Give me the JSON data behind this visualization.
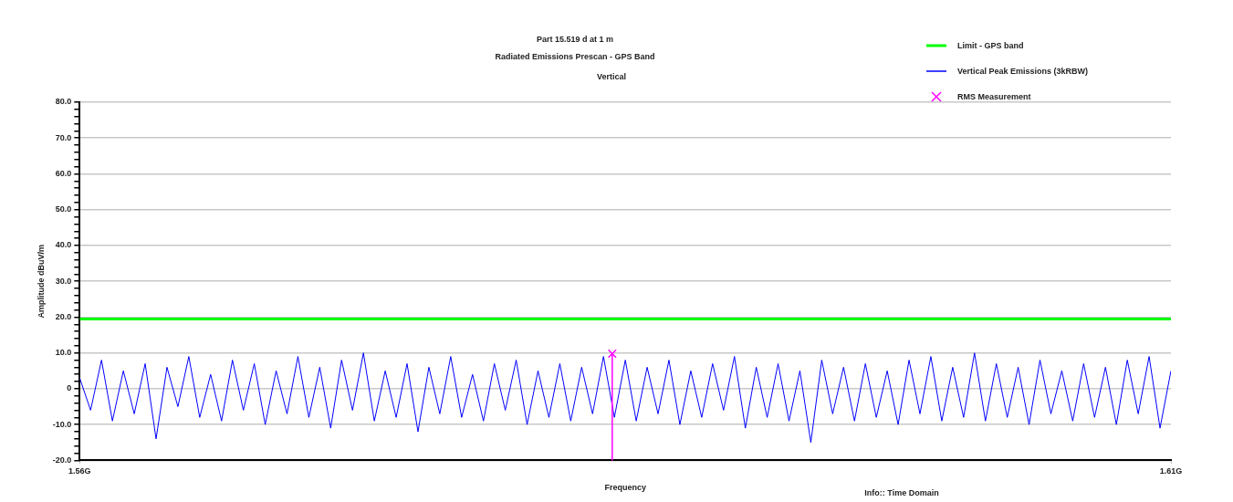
{
  "chart_data": {
    "type": "line",
    "title": "Part 15.519 d at 1 m",
    "subtitle": "Radiated Emissions  Prescan - GPS Band",
    "annotations": [
      "Vertical",
      "Info:: Time Domain"
    ],
    "xlabel": "Frequency",
    "ylabel": "Amplitude dBuV/m",
    "xlim": [
      1.56,
      1.61
    ],
    "xticks": [
      {
        "value": 1.56,
        "label": "1.56G"
      },
      {
        "value": 1.61,
        "label": "1.61G"
      }
    ],
    "ylim": [
      -20,
      80
    ],
    "yticks": [
      {
        "value": -20,
        "label": "-20.0"
      },
      {
        "value": -18,
        "label": null
      },
      {
        "value": -16,
        "label": null
      },
      {
        "value": -14,
        "label": null
      },
      {
        "value": -12,
        "label": null
      },
      {
        "value": -10,
        "label": "-10.0"
      },
      {
        "value": -8,
        "label": null
      },
      {
        "value": -6,
        "label": null
      },
      {
        "value": -4,
        "label": null
      },
      {
        "value": -2,
        "label": null
      },
      0,
      {
        "value": 2,
        "label": null
      },
      {
        "value": 4,
        "label": null
      },
      {
        "value": 6,
        "label": null
      },
      {
        "value": 8,
        "label": null
      },
      {
        "value": 10,
        "label": "10.0"
      },
      {
        "value": 12,
        "label": null
      },
      {
        "value": 14,
        "label": null
      },
      {
        "value": 16,
        "label": null
      },
      {
        "value": 18,
        "label": null
      },
      {
        "value": 20,
        "label": "20.0"
      },
      {
        "value": 22,
        "label": null
      },
      {
        "value": 24,
        "label": null
      },
      {
        "value": 26,
        "label": null
      },
      {
        "value": 28,
        "label": null
      },
      {
        "value": 30,
        "label": "30.0"
      },
      {
        "value": 32,
        "label": null
      },
      {
        "value": 34,
        "label": null
      },
      {
        "value": 36,
        "label": null
      },
      {
        "value": 38,
        "label": null
      },
      {
        "value": 40,
        "label": "40.0"
      },
      {
        "value": 42,
        "label": null
      },
      {
        "value": 44,
        "label": null
      },
      {
        "value": 46,
        "label": null
      },
      {
        "value": 48,
        "label": null
      },
      {
        "value": 50,
        "label": "50.0"
      },
      {
        "value": 52,
        "label": null
      },
      {
        "value": 54,
        "label": null
      },
      {
        "value": 56,
        "label": null
      },
      {
        "value": 58,
        "label": null
      },
      {
        "value": 60,
        "label": "60.0"
      },
      {
        "value": 62,
        "label": null
      },
      {
        "value": 64,
        "label": null
      },
      {
        "value": 66,
        "label": null
      },
      {
        "value": 68,
        "label": null
      },
      {
        "value": 70,
        "label": "70.0"
      },
      {
        "value": 72,
        "label": null
      },
      {
        "value": 74,
        "label": null
      },
      {
        "value": 76,
        "label": null
      },
      {
        "value": 78,
        "label": null
      },
      {
        "value": 80,
        "label": "80.0"
      }
    ],
    "grid": "y",
    "legend": "top right",
    "series": [
      {
        "name": "Limit - GPS band",
        "color": "#00ff00",
        "x": [
          1.56,
          1.61
        ],
        "values": [
          19.5,
          19.5
        ]
      },
      {
        "name": "Vertical Peak Emissions (3kRBW)",
        "color": "#0000ff",
        "x": [
          1.56,
          1.5605,
          1.561,
          1.5615,
          1.562,
          1.5625,
          1.563,
          1.5635,
          1.564,
          1.5645,
          1.565,
          1.5655,
          1.566,
          1.5665,
          1.567,
          1.5675,
          1.568,
          1.5685,
          1.569,
          1.5695,
          1.57,
          1.5705,
          1.571,
          1.5715,
          1.572,
          1.5725,
          1.573,
          1.5735,
          1.574,
          1.5745,
          1.575,
          1.5755,
          1.576,
          1.5765,
          1.577,
          1.5775,
          1.578,
          1.5785,
          1.579,
          1.5795,
          1.58,
          1.5805,
          1.581,
          1.5815,
          1.582,
          1.5825,
          1.583,
          1.5835,
          1.584,
          1.5845,
          1.585,
          1.5855,
          1.586,
          1.5865,
          1.587,
          1.5875,
          1.588,
          1.5885,
          1.589,
          1.5895,
          1.59,
          1.5905,
          1.591,
          1.5915,
          1.592,
          1.5925,
          1.593,
          1.5935,
          1.594,
          1.5945,
          1.595,
          1.5955,
          1.596,
          1.5965,
          1.597,
          1.5975,
          1.598,
          1.5985,
          1.599,
          1.5995,
          1.6,
          1.6005,
          1.601,
          1.6015,
          1.602,
          1.6025,
          1.603,
          1.6035,
          1.604,
          1.6045,
          1.605,
          1.6055,
          1.606,
          1.6065,
          1.607,
          1.6075,
          1.608,
          1.6085,
          1.609,
          1.6095,
          1.61
        ],
        "values": [
          3,
          -6,
          8,
          -9,
          5,
          -7,
          7,
          -14,
          6,
          -5,
          9,
          -8,
          4,
          -9,
          8,
          -6,
          7,
          -10,
          5,
          -7,
          9,
          -8,
          6,
          -11,
          8,
          -6,
          10,
          -9,
          5,
          -8,
          7,
          -12,
          6,
          -7,
          9,
          -8,
          4,
          -9,
          7,
          -6,
          8,
          -10,
          5,
          -8,
          7,
          -9,
          6,
          -7,
          9,
          -8,
          8,
          -9,
          6,
          -7,
          8,
          -10,
          5,
          -8,
          7,
          -6,
          9,
          -11,
          6,
          -8,
          7,
          -9,
          5,
          -15,
          8,
          -7,
          6,
          -9,
          7,
          -8,
          5,
          -10,
          8,
          -7,
          9,
          -9,
          6,
          -8,
          10,
          -9,
          7,
          -8,
          6,
          -10,
          8,
          -7,
          5,
          -9,
          7,
          -8,
          6,
          -10,
          8,
          -7,
          9,
          -11,
          5
        ]
      },
      {
        "name": "RMS Measurement",
        "type": "scatter",
        "marker": "cross",
        "color": "#ff00ff",
        "x": [
          1.5844
        ],
        "values": [
          9.8
        ],
        "errors": [
          [
            -20,
            9.8
          ]
        ]
      }
    ]
  }
}
